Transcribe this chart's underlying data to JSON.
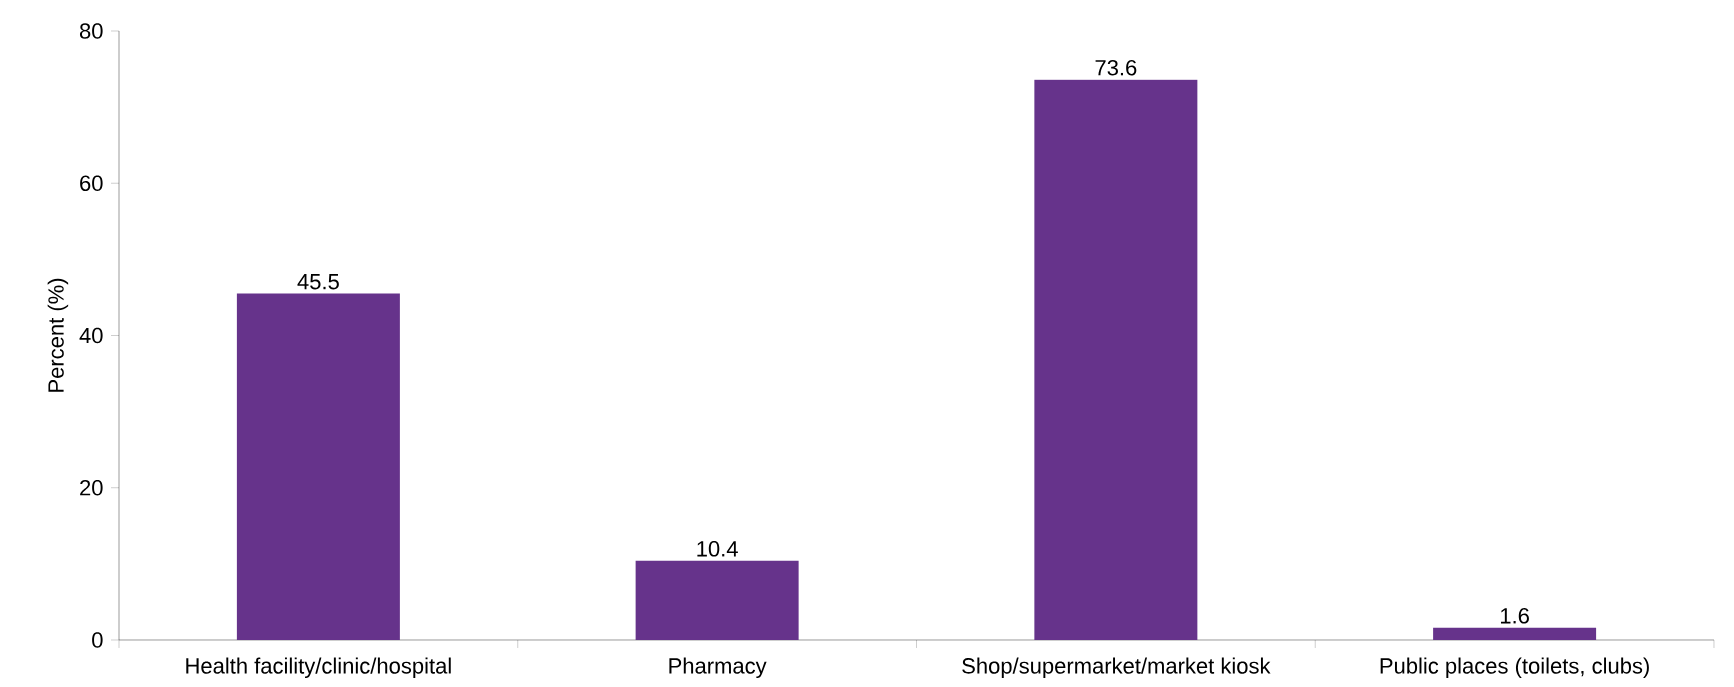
{
  "chart_data": {
    "type": "bar",
    "ylabel": "Percent (%)",
    "categories": [
      "Health facility/clinic/hospital",
      "Pharmacy",
      "Shop/supermarket/market kiosk",
      "Public places (toilets, clubs)"
    ],
    "values": [
      45.5,
      10.4,
      73.6,
      1.6
    ],
    "color": "#66338b",
    "ylim": [
      0,
      80
    ],
    "yticks": [
      0,
      20,
      40,
      60,
      80
    ],
    "data_labels": true
  }
}
